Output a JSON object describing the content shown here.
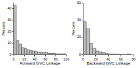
{
  "chart_data": [
    {
      "type": "histogram",
      "x_label": "Forward GVC Linkage",
      "y_label": "Percent",
      "bins": [
        0,
        5,
        10,
        15,
        20,
        25,
        30,
        35,
        40,
        45,
        50,
        55,
        60,
        65,
        70,
        75,
        80,
        85,
        90,
        95,
        100
      ],
      "values": [
        43,
        12,
        9,
        6,
        5,
        4,
        3.5,
        3,
        2.5,
        2,
        2,
        1.5,
        1.5,
        1,
        1,
        1,
        0.5,
        0.5,
        0.5,
        0.5
      ],
      "color": "#bdbdbd",
      "xlim": [
        0,
        100
      ],
      "xticks": [
        0,
        20,
        40,
        60,
        80,
        100
      ],
      "ylim": [
        0,
        45
      ],
      "yticks": [
        0,
        10,
        20,
        30,
        40
      ],
      "grid": false
    },
    {
      "type": "histogram",
      "x_label": "Backward GVC Linkage",
      "y_label": "Percent",
      "bins": [
        0,
        5,
        10,
        15,
        20,
        25,
        30,
        35,
        40,
        45,
        50,
        55,
        60,
        65,
        70,
        75
      ],
      "values": [
        38,
        30,
        13,
        7,
        4,
        3,
        2,
        1,
        0.5,
        0.5,
        0.3,
        0.2,
        0,
        0,
        0.5
      ],
      "color": "#bdbdbd",
      "xlim": [
        0,
        80
      ],
      "xticks": [
        0,
        20,
        40,
        60,
        80
      ],
      "ylim": [
        0,
        60
      ],
      "yticks": [
        0,
        20,
        40,
        60
      ],
      "grid": false
    }
  ]
}
